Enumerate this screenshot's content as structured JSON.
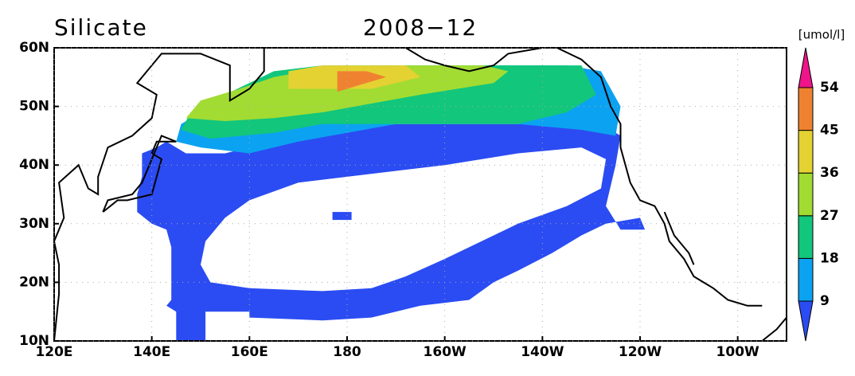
{
  "header": {
    "title": "Silicate",
    "date": "2008−12"
  },
  "map": {
    "x_labels": [
      "120E",
      "140E",
      "160E",
      "180",
      "160W",
      "140W",
      "120W",
      "100W"
    ],
    "y_labels": [
      "10N",
      "20N",
      "30N",
      "40N",
      "50N",
      "60N"
    ]
  },
  "colorbar": {
    "unit": "[umol/l]",
    "levels": [
      9,
      18,
      27,
      36,
      45,
      54
    ],
    "colors": [
      "#2b4cf2",
      "#0ca2f2",
      "#12c67c",
      "#a2dc32",
      "#e4d232",
      "#ef8230",
      "#ee1489"
    ]
  }
}
